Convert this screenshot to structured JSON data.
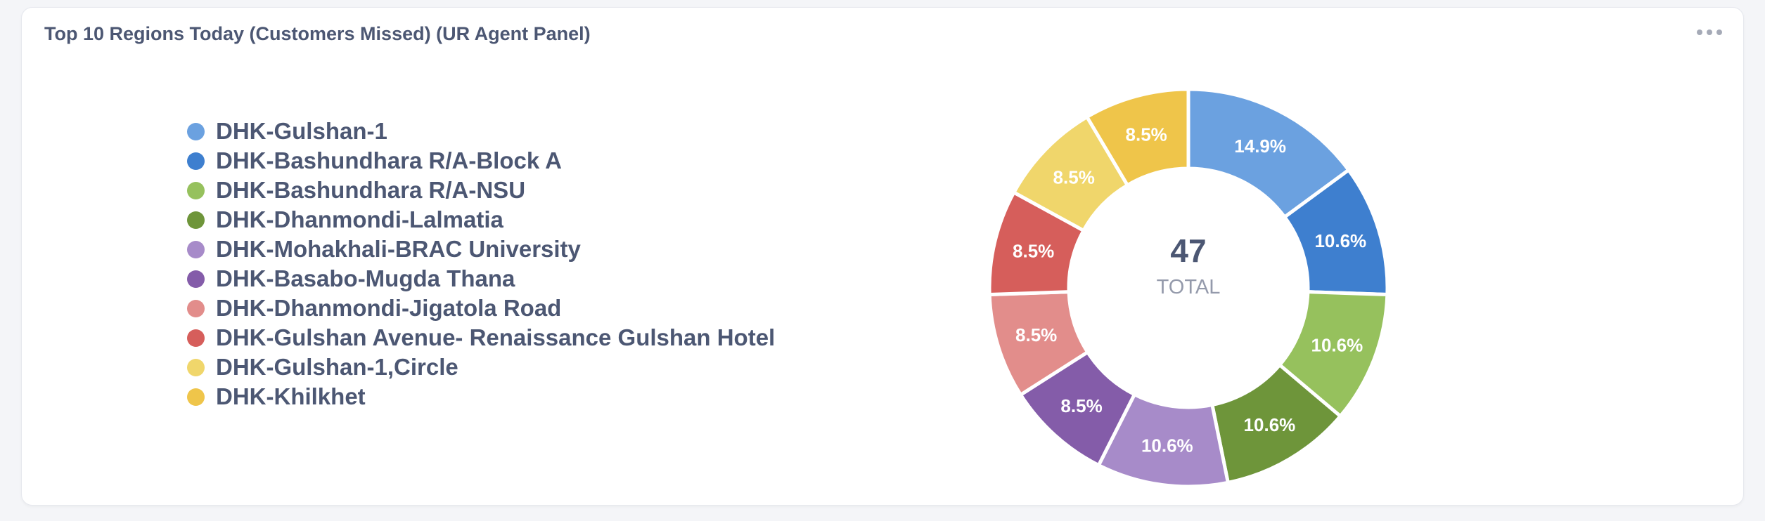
{
  "card": {
    "title": "Top 10 Regions Today (Customers Missed) (UR Agent Panel)",
    "menu_icon": "more-horizontal-icon"
  },
  "chart_data": {
    "type": "pie",
    "variant": "donut",
    "total_value": "47",
    "total_label": "TOTAL",
    "legend_position": "left",
    "slices": [
      {
        "label": "DHK-Gulshan-1",
        "value": 7,
        "percent_label": "14.9%",
        "color": "#6ba1e0"
      },
      {
        "label": "DHK-Bashundhara R/A-Block A",
        "value": 5,
        "percent_label": "10.6%",
        "color": "#3e7fcf"
      },
      {
        "label": "DHK-Bashundhara R/A-NSU",
        "value": 5,
        "percent_label": "10.6%",
        "color": "#96c15d"
      },
      {
        "label": "DHK-Dhanmondi-Lalmatia",
        "value": 5,
        "percent_label": "10.6%",
        "color": "#6e953a"
      },
      {
        "label": "DHK-Mohakhali-BRAC University",
        "value": 5,
        "percent_label": "10.6%",
        "color": "#a78bc9"
      },
      {
        "label": "DHK-Basabo-Mugda Thana",
        "value": 4,
        "percent_label": "8.5%",
        "color": "#845ca9"
      },
      {
        "label": "DHK-Dhanmondi-Jigatola Road",
        "value": 4,
        "percent_label": "8.5%",
        "color": "#e28d8b"
      },
      {
        "label": "DHK-Gulshan Avenue- Renaissance Gulshan Hotel",
        "value": 4,
        "percent_label": "8.5%",
        "color": "#d65e5b"
      },
      {
        "label": "DHK-Gulshan-1,Circle",
        "value": 4,
        "percent_label": "8.5%",
        "color": "#f0d66b"
      },
      {
        "label": "DHK-Khilkhet",
        "value": 4,
        "percent_label": "8.5%",
        "color": "#efc54a"
      }
    ]
  }
}
